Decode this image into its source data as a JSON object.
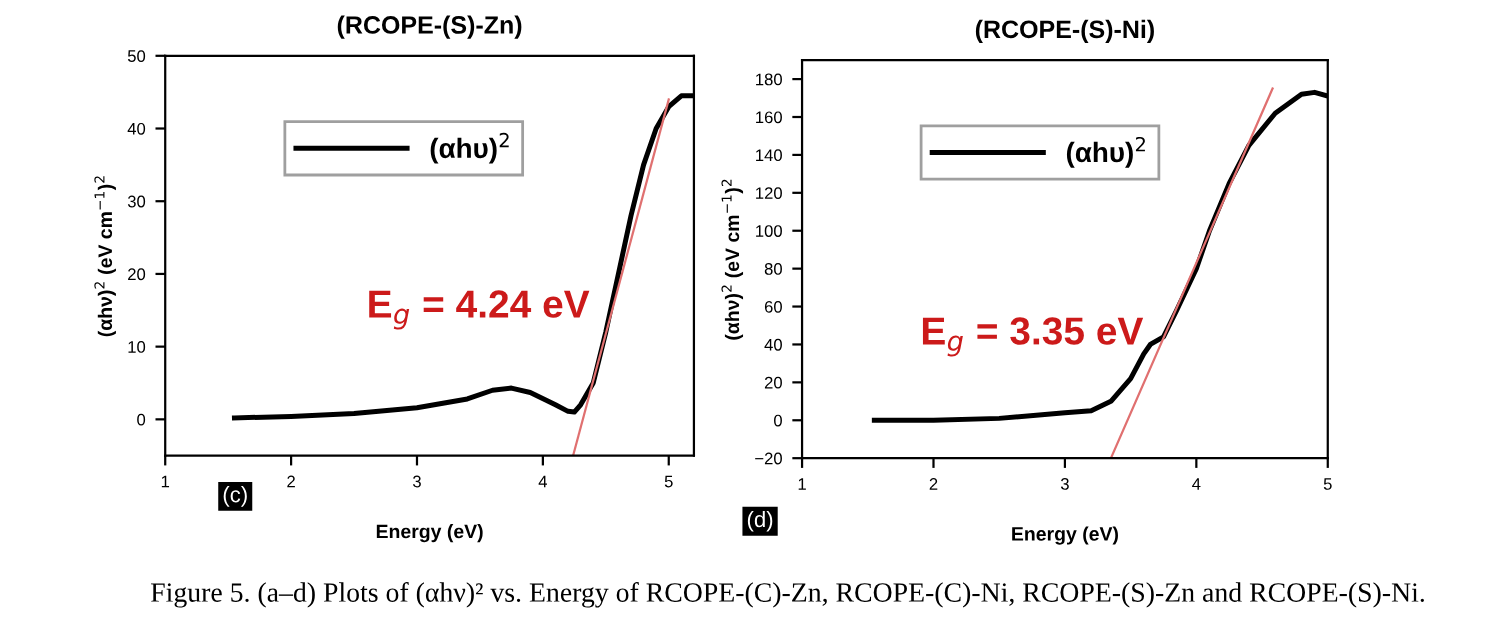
{
  "chart_data": [
    {
      "type": "line",
      "title": "(RCOPE-(S)-Zn)",
      "xlabel": "Energy (eV)",
      "ylabel": "(αhν)$^{2}$ (eV cm$^{−1}$)$^{2}$",
      "xlim": [
        1,
        5.2
      ],
      "xticks": [
        1,
        2,
        3,
        4,
        5
      ],
      "ylim": [
        -5,
        50
      ],
      "yticks": [
        0,
        10,
        20,
        30,
        40,
        50
      ],
      "grid": false,
      "legend": "top left",
      "series": [
        {
          "name": "(αhυ)$^{2}$",
          "color": "#000000",
          "x": [
            1.55,
            2,
            2.5,
            3,
            3.4,
            3.6,
            3.75,
            3.9,
            4.1,
            4.2,
            4.25,
            4.3,
            4.4,
            4.5,
            4.6,
            4.7,
            4.8,
            4.9,
            5.0,
            5.1,
            5.2
          ],
          "values": [
            0.2,
            0.4,
            0.8,
            1.6,
            2.8,
            4,
            4.3,
            3.7,
            2,
            1.1,
            1,
            2,
            5,
            12,
            20,
            28,
            35,
            40,
            43,
            44.5,
            44.5
          ]
        },
        {
          "color": "#e07070",
          "x": [
            4.24,
            5.0
          ],
          "values": [
            -5,
            44
          ]
        }
      ],
      "annotations": [
        "E$_{g}$ = 4.24 eV",
        "(c)",
        "Figure 5. (a–d) Plots of (αhν)² vs. Energy of RCOPE-(C)-Zn, RCOPE-(C)-Ni, RCOPE-(S)-Zn and RCOPE-(S)-Ni."
      ]
    },
    {
      "type": "line",
      "title": "(RCOPE-(S)-Ni)",
      "xlabel": "Energy (eV)",
      "ylabel": "(αhν)$^{2}$ (eV cm$^{−1}$)$^{2}$",
      "xlim": [
        1,
        5
      ],
      "xticks": [
        1,
        2,
        3,
        4,
        5
      ],
      "ylim": [
        -20,
        190
      ],
      "yticks": [
        -20,
        0,
        20,
        40,
        60,
        80,
        100,
        120,
        140,
        160,
        180
      ],
      "grid": false,
      "legend": "top left",
      "series": [
        {
          "name": "(αhυ)$^{2}$",
          "color": "#000000",
          "x": [
            1.55,
            2,
            2.5,
            3,
            3.2,
            3.35,
            3.5,
            3.6,
            3.65,
            3.75,
            3.85,
            4,
            4.1,
            4.25,
            4.4,
            4.6,
            4.8,
            4.9,
            5
          ],
          "values": [
            0,
            0,
            1,
            4,
            5,
            10,
            22,
            35,
            40,
            44,
            58,
            80,
            100,
            125,
            145,
            162,
            172,
            173,
            171
          ]
        },
        {
          "color": "#e07070",
          "x": [
            3.35,
            4.58
          ],
          "values": [
            -20,
            175
          ]
        }
      ],
      "annotations": [
        "E$_{g}$ = 3.35 eV",
        "(d)"
      ]
    }
  ]
}
